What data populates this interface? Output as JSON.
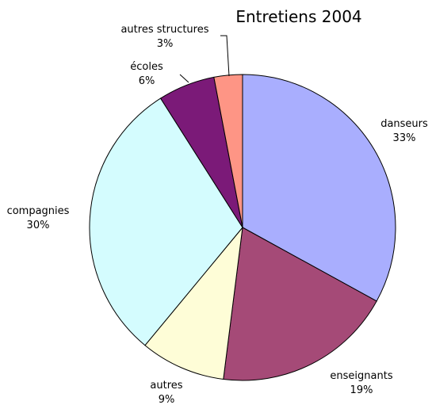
{
  "chart_data": {
    "type": "pie",
    "title": "Entretiens 2004",
    "slices": [
      {
        "label": "danseurs",
        "value": 33,
        "value_label": "33%",
        "color": "#a9aefe"
      },
      {
        "label": "enseignants",
        "value": 19,
        "value_label": "19%",
        "color": "#a54a77"
      },
      {
        "label": "autres",
        "value": 9,
        "value_label": "9%",
        "color": "#fefdd7"
      },
      {
        "label": "compagnies",
        "value": 30,
        "value_label": "30%",
        "color": "#d4fcfe"
      },
      {
        "label": "écoles",
        "value": 6,
        "value_label": "6%",
        "color": "#7b1a78"
      },
      {
        "label": "autres structures",
        "value": 3,
        "value_label": "3%",
        "color": "#fe9585"
      }
    ],
    "start": "12 o'clock",
    "direction": "clockwise",
    "legend": "none"
  }
}
